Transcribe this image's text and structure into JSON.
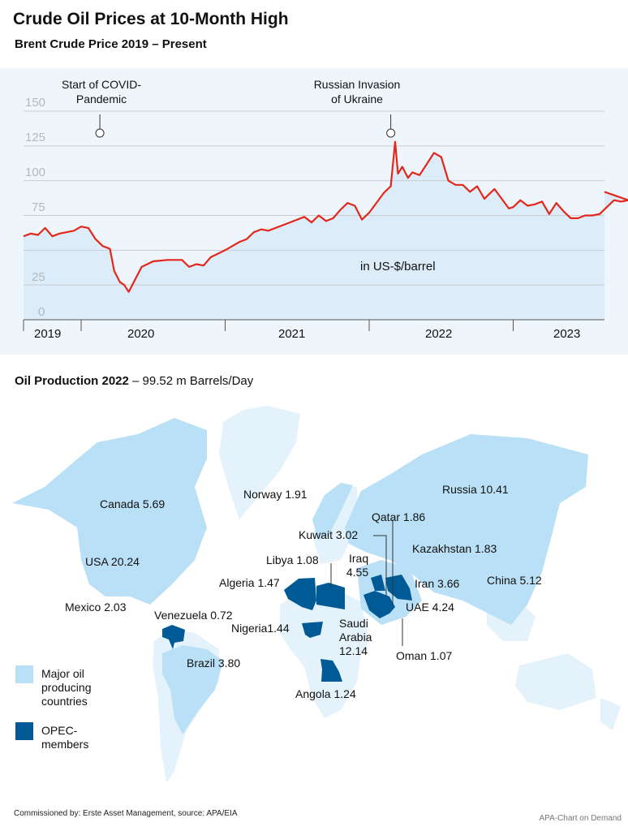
{
  "header": {
    "title": "Crude Oil Prices at 10-Month High",
    "subtitle": "Brent Crude Price 2019 – Present"
  },
  "chart_data": {
    "type": "line",
    "title": "Brent Crude Price 2019 – Present",
    "ylabel": "in US-$/barrel",
    "ylim": [
      0,
      150
    ],
    "yticks": [
      "0",
      "25",
      "75",
      "100",
      "125",
      "150"
    ],
    "xlim": [
      2019.6,
      2023.83
    ],
    "year_labels": [
      "2019",
      "2020",
      "2021",
      "2022",
      "2023"
    ],
    "grid": true,
    "color": "#e3271b",
    "annotations": [
      {
        "text_line1": "Start of COVID-",
        "text_line2": "Pandemic",
        "x": 2020.13
      },
      {
        "text_line1": "Russian Invasion",
        "text_line2": "of Ukraine",
        "x": 2022.15
      }
    ],
    "series": [
      {
        "name": "Brent",
        "x": [
          2019.6,
          2019.65,
          2019.7,
          2019.75,
          2019.8,
          2019.85,
          2019.9,
          2019.95,
          2020.0,
          2020.05,
          2020.1,
          2020.15,
          2020.2,
          2020.23,
          2020.27,
          2020.3,
          2020.33,
          2020.37,
          2020.42,
          2020.5,
          2020.6,
          2020.7,
          2020.75,
          2020.8,
          2020.85,
          2020.9,
          2021.0,
          2021.05,
          2021.1,
          2021.15,
          2021.2,
          2021.25,
          2021.3,
          2021.35,
          2021.4,
          2021.5,
          2021.55,
          2021.6,
          2021.65,
          2021.7,
          2021.75,
          2021.8,
          2021.85,
          2021.9,
          2021.95,
          2022.0,
          2022.05,
          2022.1,
          2022.15,
          2022.18,
          2022.2,
          2022.23,
          2022.27,
          2022.3,
          2022.35,
          2022.4,
          2022.45,
          2022.5,
          2022.55,
          2022.6,
          2022.65,
          2022.7,
          2022.75,
          2022.8,
          2022.87,
          2022.92,
          2022.97,
          2023.0,
          2023.05,
          2023.1,
          2023.15,
          2023.2,
          2023.25,
          2023.3,
          2023.35,
          2023.4,
          2023.45,
          2023.5,
          2023.55,
          2023.6,
          2023.65,
          2023.7,
          2023.75,
          2023.8,
          2023.83
        ],
        "values": [
          60,
          62,
          61,
          66,
          60,
          62,
          63,
          64,
          67,
          66,
          58,
          53,
          51,
          35,
          27,
          25,
          20,
          28,
          38,
          42,
          43,
          43,
          38,
          40,
          39,
          45,
          50,
          53,
          56,
          58,
          63,
          65,
          64,
          66,
          68,
          72,
          74,
          70,
          75,
          71,
          73,
          79,
          84,
          82,
          72,
          77,
          84,
          91,
          96,
          128,
          105,
          110,
          102,
          106,
          104,
          112,
          120,
          117,
          100,
          97,
          97,
          92,
          96,
          87,
          94,
          87,
          80,
          81,
          86,
          82,
          83,
          85,
          76,
          84,
          78,
          73,
          73,
          75,
          75,
          76,
          81,
          86,
          85,
          86,
          92
        ]
      }
    ]
  },
  "map": {
    "title_bold": "Oil Production 2022",
    "title_rest": "– 99.52 m  Barrels/Day",
    "colors": {
      "major": "#b9e0f6",
      "opec": "#005a96",
      "land": "#e4f2fb"
    },
    "labels": {
      "canada": "Canada 5.69",
      "usa": "USA 20.24",
      "mexico": "Mexico 2.03",
      "venezuela": "Venezuela 0.72",
      "brazil": "Brazil 3.80",
      "norway": "Norway 1.91",
      "russia": "Russia 10.41",
      "qatar": "Qatar 1.86",
      "kuwait": "Kuwait 3.02",
      "kazakhstan": "Kazakhstan 1.83",
      "libya": "Libya 1.08",
      "iraq_1": "Iraq",
      "iraq_2": "4.55",
      "algeria": "Algeria 1.47",
      "iran": "Iran 3.66",
      "china": "China 5.12",
      "uae": "UAE 4.24",
      "saudi_1": "Saudi",
      "saudi_2": "Arabia",
      "saudi_3": "12.14",
      "nigeria": "Nigeria1.44",
      "oman": "Oman 1.07",
      "angola": "Angola 1.24"
    },
    "legend": {
      "major_1": "Major oil",
      "major_2": "producing",
      "major_3": "countries",
      "opec_1": "OPEC-",
      "opec_2": "members"
    }
  },
  "footer": {
    "source": "Commissioned by: Erste Asset Management, source: APA/EIA",
    "credit": "APA-Chart on Demand"
  }
}
